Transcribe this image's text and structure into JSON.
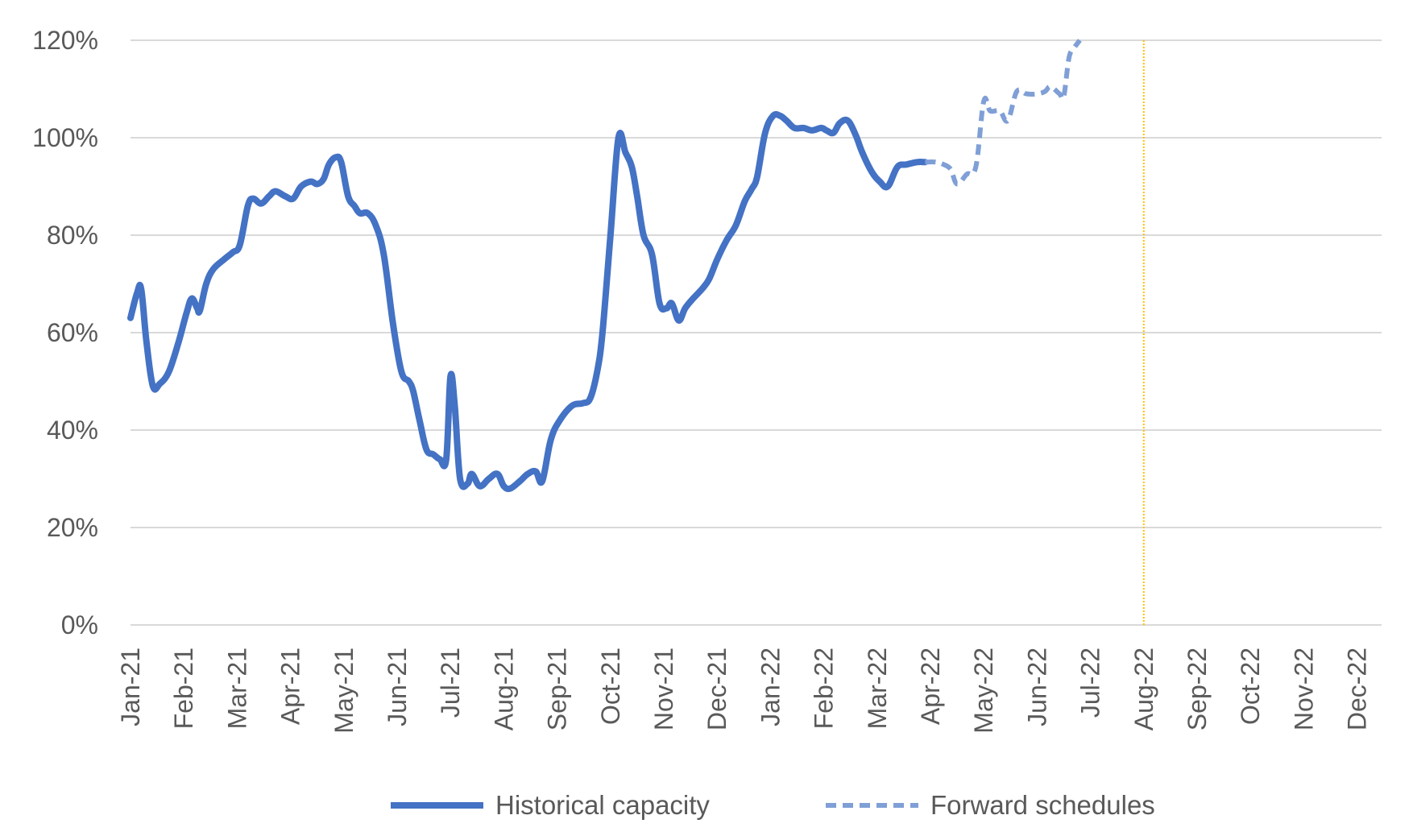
{
  "chart_data": {
    "type": "line",
    "title": "",
    "xlabel": "",
    "ylabel": "",
    "ylim": [
      0,
      120
    ],
    "y_ticks": [
      "0%",
      "20%",
      "40%",
      "60%",
      "80%",
      "100%",
      "120%"
    ],
    "x_ticks": [
      "Jan-21",
      "Feb-21",
      "Mar-21",
      "Apr-21",
      "May-21",
      "Jun-21",
      "Jul-21",
      "Aug-21",
      "Sep-21",
      "Oct-21",
      "Nov-21",
      "Dec-21",
      "Jan-22",
      "Feb-22",
      "Mar-22",
      "Apr-22",
      "May-22",
      "Jun-22",
      "Jul-22",
      "Aug-22",
      "Sep-22",
      "Oct-22",
      "Nov-22",
      "Dec-22"
    ],
    "grid": true,
    "legend_position": "bottom",
    "reference_line": {
      "x": 19,
      "color": "#ffc000"
    },
    "series": [
      {
        "name": "Historical capacity",
        "color": "#4472c4",
        "style": "solid",
        "points": [
          [
            0.0,
            63
          ],
          [
            0.12,
            68
          ],
          [
            0.2,
            69
          ],
          [
            0.3,
            58
          ],
          [
            0.42,
            49
          ],
          [
            0.55,
            49.5
          ],
          [
            0.72,
            52
          ],
          [
            0.9,
            58
          ],
          [
            1.05,
            64
          ],
          [
            1.15,
            67
          ],
          [
            1.25,
            65
          ],
          [
            1.3,
            64.5
          ],
          [
            1.42,
            70
          ],
          [
            1.55,
            73
          ],
          [
            1.75,
            75
          ],
          [
            1.92,
            76.5
          ],
          [
            2.05,
            78
          ],
          [
            2.2,
            86
          ],
          [
            2.3,
            87.5
          ],
          [
            2.45,
            86.5
          ],
          [
            2.6,
            88
          ],
          [
            2.72,
            89
          ],
          [
            2.9,
            88
          ],
          [
            3.05,
            87.5
          ],
          [
            3.2,
            90
          ],
          [
            3.38,
            91
          ],
          [
            3.5,
            90.5
          ],
          [
            3.62,
            91.5
          ],
          [
            3.72,
            94.5
          ],
          [
            3.85,
            96
          ],
          [
            3.95,
            95
          ],
          [
            4.08,
            88
          ],
          [
            4.2,
            86
          ],
          [
            4.3,
            84.5
          ],
          [
            4.45,
            84.5
          ],
          [
            4.6,
            82
          ],
          [
            4.75,
            76
          ],
          [
            4.92,
            62
          ],
          [
            5.08,
            52
          ],
          [
            5.22,
            50
          ],
          [
            5.3,
            48
          ],
          [
            5.42,
            42
          ],
          [
            5.55,
            36
          ],
          [
            5.68,
            35
          ],
          [
            5.8,
            34
          ],
          [
            5.92,
            34
          ],
          [
            6.0,
            51
          ],
          [
            6.08,
            45
          ],
          [
            6.18,
            30
          ],
          [
            6.32,
            29
          ],
          [
            6.4,
            31
          ],
          [
            6.55,
            28.5
          ],
          [
            6.72,
            30
          ],
          [
            6.88,
            31
          ],
          [
            7.0,
            28.5
          ],
          [
            7.12,
            28
          ],
          [
            7.3,
            29.5
          ],
          [
            7.45,
            31
          ],
          [
            7.6,
            31.5
          ],
          [
            7.72,
            29.5
          ],
          [
            7.88,
            38
          ],
          [
            8.05,
            42
          ],
          [
            8.28,
            45
          ],
          [
            8.48,
            45.5
          ],
          [
            8.62,
            46.5
          ],
          [
            8.75,
            52
          ],
          [
            8.85,
            60
          ],
          [
            9.0,
            80
          ],
          [
            9.15,
            100
          ],
          [
            9.28,
            97
          ],
          [
            9.4,
            94
          ],
          [
            9.5,
            88
          ],
          [
            9.62,
            80
          ],
          [
            9.78,
            76
          ],
          [
            9.92,
            66
          ],
          [
            10.05,
            65
          ],
          [
            10.15,
            66
          ],
          [
            10.28,
            62.5
          ],
          [
            10.4,
            65
          ],
          [
            10.55,
            67
          ],
          [
            10.72,
            69
          ],
          [
            10.85,
            71
          ],
          [
            11.0,
            75
          ],
          [
            11.18,
            79
          ],
          [
            11.35,
            82
          ],
          [
            11.52,
            87
          ],
          [
            11.65,
            89.5
          ],
          [
            11.75,
            92
          ],
          [
            11.9,
            101
          ],
          [
            12.05,
            104.5
          ],
          [
            12.18,
            104.5
          ],
          [
            12.3,
            103.5
          ],
          [
            12.45,
            102
          ],
          [
            12.62,
            102
          ],
          [
            12.78,
            101.5
          ],
          [
            12.95,
            102
          ],
          [
            13.05,
            101.5
          ],
          [
            13.18,
            101
          ],
          [
            13.3,
            103
          ],
          [
            13.45,
            103.5
          ],
          [
            13.6,
            100.5
          ],
          [
            13.72,
            97
          ],
          [
            13.9,
            93
          ],
          [
            14.05,
            91
          ],
          [
            14.2,
            90
          ],
          [
            14.38,
            94
          ],
          [
            14.55,
            94.5
          ],
          [
            14.75,
            95
          ],
          [
            14.9,
            95
          ]
        ]
      },
      {
        "name": "Forward schedules",
        "color": "#7f9fd6",
        "style": "dashed",
        "points": [
          [
            14.9,
            95
          ],
          [
            15.1,
            95
          ],
          [
            15.25,
            94.5
          ],
          [
            15.38,
            93.5
          ],
          [
            15.5,
            90.5
          ],
          [
            15.68,
            92.5
          ],
          [
            15.85,
            94
          ],
          [
            16.0,
            107.5
          ],
          [
            16.12,
            105.5
          ],
          [
            16.3,
            105.5
          ],
          [
            16.45,
            103.5
          ],
          [
            16.62,
            109.5
          ],
          [
            16.8,
            109
          ],
          [
            17.0,
            109
          ],
          [
            17.15,
            109.5
          ],
          [
            17.25,
            110.5
          ],
          [
            17.42,
            109
          ],
          [
            17.5,
            108.5
          ],
          [
            17.6,
            116.5
          ],
          [
            17.7,
            118.5
          ],
          [
            17.8,
            120
          ]
        ]
      }
    ]
  }
}
